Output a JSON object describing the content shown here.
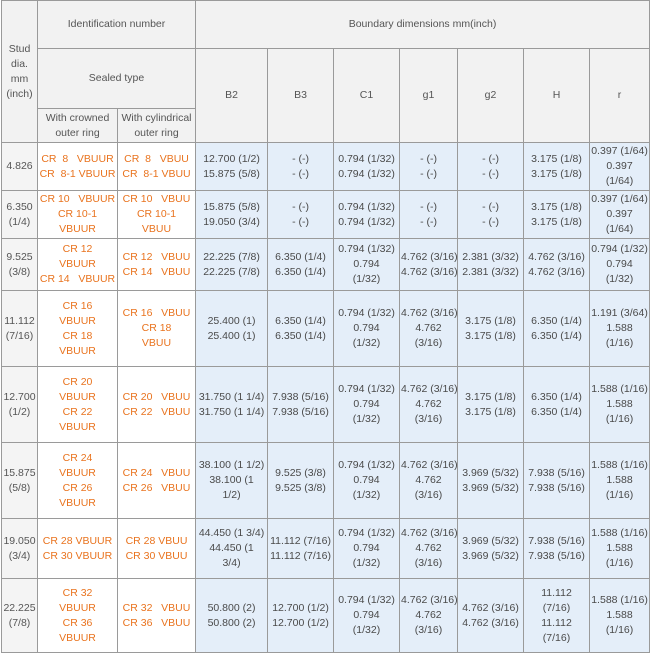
{
  "header": {
    "stud": [
      "Stud",
      "dia.",
      "mm",
      "(inch)"
    ],
    "identification": "Identification number",
    "boundary": "Boundary dimensions mm(inch)",
    "sealed_type": "Sealed type",
    "crowned": [
      "With crowned",
      "outer ring"
    ],
    "cylindrical": [
      "With cylindrical",
      "outer ring"
    ],
    "columns": [
      "B2",
      "B3",
      "C1",
      "g1",
      "g2",
      "H",
      "r"
    ]
  },
  "rows": [
    {
      "stud": [
        "4.826"
      ],
      "crowned": [
        "CR  8   VBUUR",
        "CR  8-1 VBUUR"
      ],
      "cylindrical": [
        "CR  8   VBUU",
        "CR  8-1 VBUU"
      ],
      "b2": [
        "12.700 (1/2)",
        "15.875 (5/8)"
      ],
      "b3": [
        "- (-)",
        "- (-)"
      ],
      "c1": [
        "0.794 (1/32)",
        "0.794 (1/32)"
      ],
      "g1": [
        "- (-)",
        "- (-)"
      ],
      "g2": [
        "- (-)",
        "- (-)"
      ],
      "h": [
        "3.175 (1/8)",
        "3.175 (1/8)"
      ],
      "r": [
        "0.397 (1/64)",
        "0.397",
        "(1/64)"
      ]
    },
    {
      "stud": [
        "6.350",
        "(1/4)"
      ],
      "crowned": [
        "CR 10   VBUUR",
        "CR 10-1",
        "VBUUR"
      ],
      "cylindrical": [
        "CR 10   VBUU",
        "CR 10-1",
        "VBUU"
      ],
      "b2": [
        "15.875 (5/8)",
        "19.050 (3/4)"
      ],
      "b3": [
        "- (-)",
        "- (-)"
      ],
      "c1": [
        "0.794 (1/32)",
        "0.794 (1/32)"
      ],
      "g1": [
        "- (-)",
        "- (-)"
      ],
      "g2": [
        "- (-)",
        "- (-)"
      ],
      "h": [
        "3.175 (1/8)",
        "3.175 (1/8)"
      ],
      "r": [
        "0.397 (1/64)",
        "0.397",
        "(1/64)"
      ]
    },
    {
      "stud": [
        "9.525",
        "(3/8)"
      ],
      "crowned": [
        "CR 12",
        "VBUUR",
        "CR 14   VBUUR"
      ],
      "cylindrical": [
        "CR 12   VBUU",
        "CR 14   VBUU"
      ],
      "b2": [
        "22.225 (7/8)",
        "22.225 (7/8)"
      ],
      "b3": [
        "6.350 (1/4)",
        "6.350 (1/4)"
      ],
      "c1": [
        "0.794 (1/32)",
        "0.794",
        "(1/32)"
      ],
      "g1": [
        "4.762 (3/16)",
        "4.762 (3/16)"
      ],
      "g2": [
        "2.381 (3/32)",
        "2.381 (3/32)"
      ],
      "h": [
        "4.762 (3/16)",
        "4.762 (3/16)"
      ],
      "r": [
        "0.794 (1/32)",
        "0.794",
        "(1/32)"
      ]
    },
    {
      "stud": [
        "11.112",
        "(7/16)"
      ],
      "crowned": [
        "CR 16",
        "VBUUR",
        "CR 18",
        "VBUUR"
      ],
      "cylindrical": [
        "CR 16   VBUU",
        "CR 18",
        "VBUU"
      ],
      "b2": [
        "25.400 (1)",
        "25.400 (1)"
      ],
      "b3": [
        "6.350 (1/4)",
        "6.350 (1/4)"
      ],
      "c1": [
        "0.794 (1/32)",
        "0.794",
        "(1/32)"
      ],
      "g1": [
        "4.762 (3/16)",
        "4.762",
        "(3/16)"
      ],
      "g2": [
        "3.175 (1/8)",
        "3.175 (1/8)"
      ],
      "h": [
        "6.350 (1/4)",
        "6.350 (1/4)"
      ],
      "r": [
        "1.191 (3/64)",
        "1.588",
        "(1/16)"
      ]
    },
    {
      "stud": [
        "12.700",
        "(1/2)"
      ],
      "crowned": [
        "CR 20",
        "VBUUR",
        "CR 22",
        "VBUUR"
      ],
      "cylindrical": [
        "CR 20   VBUU",
        "CR 22   VBUU"
      ],
      "b2": [
        "31.750 (1 1/4)",
        "31.750 (1 1/4)"
      ],
      "b3": [
        "7.938 (5/16)",
        "7.938 (5/16)"
      ],
      "c1": [
        "0.794 (1/32)",
        "0.794",
        "(1/32)"
      ],
      "g1": [
        "4.762 (3/16)",
        "4.762",
        "(3/16)"
      ],
      "g2": [
        "3.175 (1/8)",
        "3.175 (1/8)"
      ],
      "h": [
        "6.350 (1/4)",
        "6.350 (1/4)"
      ],
      "r": [
        "1.588 (1/16)",
        "1.588",
        "(1/16)"
      ]
    },
    {
      "stud": [
        "15.875",
        "(5/8)"
      ],
      "crowned": [
        "CR 24",
        "VBUUR",
        "CR 26",
        "VBUUR"
      ],
      "cylindrical": [
        "CR 24   VBUU",
        "CR 26   VBUU"
      ],
      "b2": [
        "38.100 (1 1/2)",
        "38.100 (1",
        "1/2)"
      ],
      "b3": [
        "9.525 (3/8)",
        "9.525 (3/8)"
      ],
      "c1": [
        "0.794 (1/32)",
        "0.794",
        "(1/32)"
      ],
      "g1": [
        "4.762 (3/16)",
        "4.762",
        "(3/16)"
      ],
      "g2": [
        "3.969 (5/32)",
        "3.969 (5/32)"
      ],
      "h": [
        "7.938 (5/16)",
        "7.938 (5/16)"
      ],
      "r": [
        "1.588 (1/16)",
        "1.588",
        "(1/16)"
      ]
    },
    {
      "stud": [
        "19.050",
        "(3/4)"
      ],
      "crowned": [
        "CR 28 VBUUR",
        "CR 30 VBUUR"
      ],
      "cylindrical": [
        "CR 28 VBUU",
        "CR 30 VBUU"
      ],
      "b2": [
        "44.450 (1 3/4)",
        "44.450 (1",
        "3/4)"
      ],
      "b3": [
        "11.112 (7/16)",
        "11.112 (7/16)"
      ],
      "c1": [
        "0.794 (1/32)",
        "0.794",
        "(1/32)"
      ],
      "g1": [
        "4.762 (3/16)",
        "4.762",
        "(3/16)"
      ],
      "g2": [
        "3.969 (5/32)",
        "3.969 (5/32)"
      ],
      "h": [
        "7.938 (5/16)",
        "7.938 (5/16)"
      ],
      "r": [
        "1.588 (1/16)",
        "1.588",
        "(1/16)"
      ]
    },
    {
      "stud": [
        "22.225",
        "(7/8)"
      ],
      "crowned": [
        "CR 32",
        "VBUUR",
        "CR 36",
        "VBUUR"
      ],
      "cylindrical": [
        "CR 32   VBUU",
        "CR 36   VBUU"
      ],
      "b2": [
        "50.800 (2)",
        "50.800 (2)"
      ],
      "b3": [
        "12.700 (1/2)",
        "12.700 (1/2)"
      ],
      "c1": [
        "0.794 (1/32)",
        "0.794",
        "(1/32)"
      ],
      "g1": [
        "4.762 (3/16)",
        "4.762",
        "(3/16)"
      ],
      "g2": [
        "4.762 (3/16)",
        "4.762 (3/16)"
      ],
      "h": [
        "11.112",
        "(7/16)",
        "11.112",
        "(7/16)"
      ],
      "r": [
        "1.588 (1/16)",
        "1.588",
        "(1/16)"
      ]
    }
  ]
}
